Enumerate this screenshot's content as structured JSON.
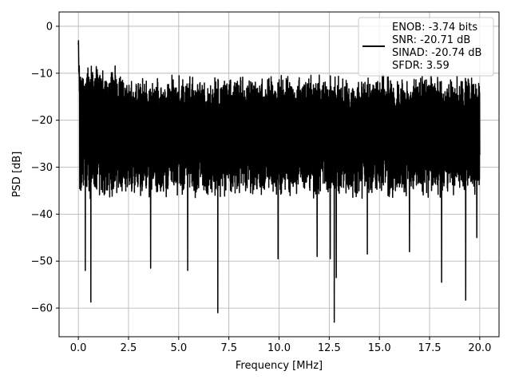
{
  "chart_data": {
    "type": "line",
    "title": "",
    "xlabel": "Frequency [MHz]",
    "ylabel": "PSD [dB]",
    "xlim": [
      -0.96,
      20.96
    ],
    "ylim": [
      -66.1,
      3.05
    ],
    "x_ticks": [
      0.0,
      2.5,
      5.0,
      7.5,
      10.0,
      12.5,
      15.0,
      17.5,
      20.0
    ],
    "x_tick_labels": [
      "0.0",
      "2.5",
      "5.0",
      "7.5",
      "10.0",
      "12.5",
      "15.0",
      "17.5",
      "20.0"
    ],
    "y_ticks": [
      0,
      -10,
      -20,
      -30,
      -40,
      -50,
      -60
    ],
    "y_tick_labels": [
      "0",
      "−10",
      "−20",
      "−30",
      "−40",
      "−50",
      "−60"
    ],
    "grid": true,
    "legend_position": "top-right",
    "series": [
      {
        "name": "ENOB: -3.74 bits\nSNR: -20.71 dB\nSINAD: -20.74 dB\nSFDR: 3.59",
        "legend_lines": [
          "ENOB: -3.74 bits",
          "SNR: -20.71 dB",
          "SINAD: -20.74 dB",
          "SFDR: 3.59"
        ],
        "color": "#000000",
        "x_start": 0.0,
        "x_end": 20.0,
        "peak_value": 0.0,
        "band_upper_envelope": -12.0,
        "band_lower_envelope": -29.0,
        "deep_nulls": [
          {
            "x": 0.35,
            "y": -52.0
          },
          {
            "x": 0.62,
            "y": -58.7
          },
          {
            "x": 3.6,
            "y": -51.5
          },
          {
            "x": 5.45,
            "y": -52.0
          },
          {
            "x": 6.95,
            "y": -61.0
          },
          {
            "x": 9.95,
            "y": -49.5
          },
          {
            "x": 11.9,
            "y": -49.0
          },
          {
            "x": 12.55,
            "y": -49.5
          },
          {
            "x": 12.75,
            "y": -63.0
          },
          {
            "x": 12.85,
            "y": -53.5
          },
          {
            "x": 14.4,
            "y": -48.5
          },
          {
            "x": 16.5,
            "y": -48.0
          },
          {
            "x": 18.1,
            "y": -54.5
          },
          {
            "x": 19.3,
            "y": -58.3
          },
          {
            "x": 19.85,
            "y": -45.0
          }
        ]
      }
    ]
  }
}
